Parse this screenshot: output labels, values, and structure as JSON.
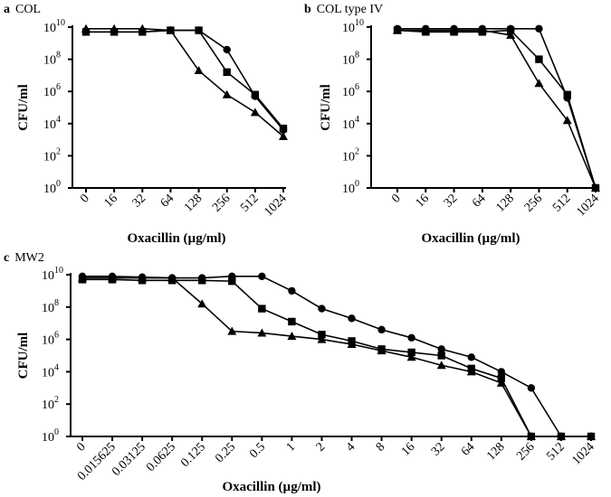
{
  "chart_data": [
    {
      "type": "line",
      "panel": "a",
      "title": "COL",
      "xlabel": "Oxacillin (µg/ml)",
      "ylabel": "CFU/ml",
      "yscale": "log",
      "ylim_log10": [
        0,
        10
      ],
      "yticks": [
        "10^0",
        "10^2",
        "10^4",
        "10^6",
        "10^8",
        "10^10"
      ],
      "categories": [
        "0",
        "16",
        "32",
        "64",
        "128",
        "256",
        "512",
        "1024"
      ],
      "series": [
        {
          "marker": "circle",
          "log10_values": [
            9.7,
            9.7,
            9.7,
            9.8,
            9.8,
            8.6,
            5.7,
            3.6
          ]
        },
        {
          "marker": "square",
          "log10_values": [
            9.7,
            9.7,
            9.7,
            9.8,
            9.8,
            7.2,
            5.8,
            3.7
          ]
        },
        {
          "marker": "triangle",
          "log10_values": [
            9.9,
            9.9,
            9.9,
            9.8,
            7.3,
            5.8,
            4.7,
            3.2
          ]
        }
      ]
    },
    {
      "type": "line",
      "panel": "b",
      "title": "COL type IV",
      "xlabel": "Oxacillin (µg/ml)",
      "ylabel": "CFU/ml",
      "yscale": "log",
      "ylim_log10": [
        0,
        10
      ],
      "yticks": [
        "10^0",
        "10^2",
        "10^4",
        "10^6",
        "10^8",
        "10^10"
      ],
      "categories": [
        "0",
        "16",
        "32",
        "64",
        "128",
        "256",
        "512",
        "1024"
      ],
      "series": [
        {
          "marker": "circle",
          "log10_values": [
            9.9,
            9.9,
            9.9,
            9.9,
            9.9,
            9.9,
            5.6,
            0
          ]
        },
        {
          "marker": "square",
          "log10_values": [
            9.8,
            9.7,
            9.7,
            9.7,
            9.8,
            8.0,
            5.8,
            0
          ]
        },
        {
          "marker": "triangle",
          "log10_values": [
            9.8,
            9.8,
            9.8,
            9.8,
            9.5,
            6.5,
            4.2,
            0
          ]
        }
      ]
    },
    {
      "type": "line",
      "panel": "c",
      "title": "MW2",
      "xlabel": "Oxacillin (µg/ml)",
      "ylabel": "CFU/ml",
      "yscale": "log",
      "ylim_log10": [
        0,
        10
      ],
      "yticks": [
        "10^0",
        "10^2",
        "10^4",
        "10^6",
        "10^8",
        "10^10"
      ],
      "categories": [
        "0",
        "0.015625",
        "0.03125",
        "0.0625",
        "0.125",
        "0.25",
        "0.5",
        "1",
        "2",
        "4",
        "8",
        "16",
        "32",
        "64",
        "128",
        "256",
        "512",
        "1024"
      ],
      "series": [
        {
          "marker": "circle",
          "log10_values": [
            9.9,
            9.9,
            9.85,
            9.8,
            9.8,
            9.9,
            9.9,
            9.0,
            7.9,
            7.3,
            6.6,
            6.1,
            5.4,
            4.9,
            4.0,
            3.0,
            0,
            0
          ]
        },
        {
          "marker": "square",
          "log10_values": [
            9.7,
            9.7,
            9.65,
            9.65,
            9.65,
            9.6,
            7.9,
            7.1,
            6.3,
            5.9,
            5.4,
            5.2,
            5.0,
            4.2,
            3.6,
            0,
            0,
            0
          ]
        },
        {
          "marker": "triangle",
          "log10_values": [
            9.8,
            9.8,
            9.8,
            9.8,
            8.2,
            6.5,
            6.4,
            6.2,
            6.0,
            5.7,
            5.3,
            4.9,
            4.4,
            4.0,
            3.3,
            0,
            0,
            0
          ]
        }
      ]
    }
  ]
}
